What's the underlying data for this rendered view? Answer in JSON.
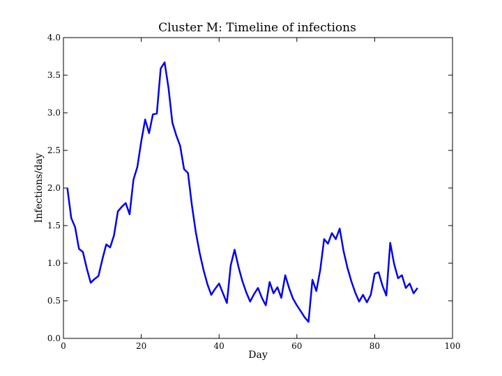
{
  "chart_data": {
    "type": "line",
    "title": "Cluster M: Timeline of infections",
    "xlabel": "Day",
    "ylabel": "Infections/day",
    "xlim": [
      0,
      100
    ],
    "ylim": [
      0.0,
      4.0
    ],
    "xticks": [
      "0",
      "20",
      "40",
      "60",
      "80",
      "100"
    ],
    "yticks": [
      "0.0",
      "0.5",
      "1.0",
      "1.5",
      "2.0",
      "2.5",
      "3.0",
      "3.5",
      "4.0"
    ],
    "grid": false,
    "line_color": "#0000ee",
    "series": [
      {
        "x": [
          1,
          2,
          3,
          4,
          5,
          6,
          7,
          8,
          9,
          10,
          11,
          12,
          13,
          14,
          15,
          16,
          17,
          18,
          19,
          20,
          21,
          22,
          23,
          24,
          25,
          26,
          27,
          28,
          29,
          30,
          31,
          32,
          33,
          34,
          35,
          36,
          37,
          38,
          39,
          40,
          41,
          42,
          43,
          44,
          45,
          46,
          47,
          48,
          49,
          50,
          51,
          52,
          53,
          54,
          55,
          56,
          57,
          58,
          59,
          60,
          61,
          62,
          63,
          64,
          65,
          66,
          67,
          68,
          69,
          70,
          71,
          72,
          73,
          74,
          75,
          76,
          77,
          78,
          79,
          80,
          81,
          82,
          83,
          84,
          85,
          86,
          87,
          88,
          89,
          90,
          91
        ],
        "y": [
          2.0,
          1.6,
          1.48,
          1.19,
          1.15,
          0.93,
          0.74,
          0.79,
          0.83,
          1.05,
          1.25,
          1.21,
          1.37,
          1.69,
          1.75,
          1.8,
          1.65,
          2.11,
          2.28,
          2.62,
          2.91,
          2.73,
          2.98,
          2.99,
          3.59,
          3.67,
          3.33,
          2.87,
          2.7,
          2.56,
          2.25,
          2.2,
          1.78,
          1.42,
          1.14,
          0.91,
          0.72,
          0.58,
          0.66,
          0.73,
          0.6,
          0.47,
          0.97,
          1.18,
          0.95,
          0.76,
          0.61,
          0.49,
          0.59,
          0.67,
          0.54,
          0.44,
          0.75,
          0.6,
          0.68,
          0.54,
          0.84,
          0.67,
          0.53,
          0.44,
          0.36,
          0.28,
          0.22,
          0.78,
          0.63,
          0.91,
          1.32,
          1.26,
          1.4,
          1.32,
          1.46,
          1.16,
          0.94,
          0.76,
          0.61,
          0.49,
          0.58,
          0.48,
          0.58,
          0.86,
          0.88,
          0.7,
          0.57,
          1.27,
          0.99,
          0.8,
          0.84,
          0.67,
          0.73,
          0.6,
          0.67
        ]
      }
    ]
  }
}
